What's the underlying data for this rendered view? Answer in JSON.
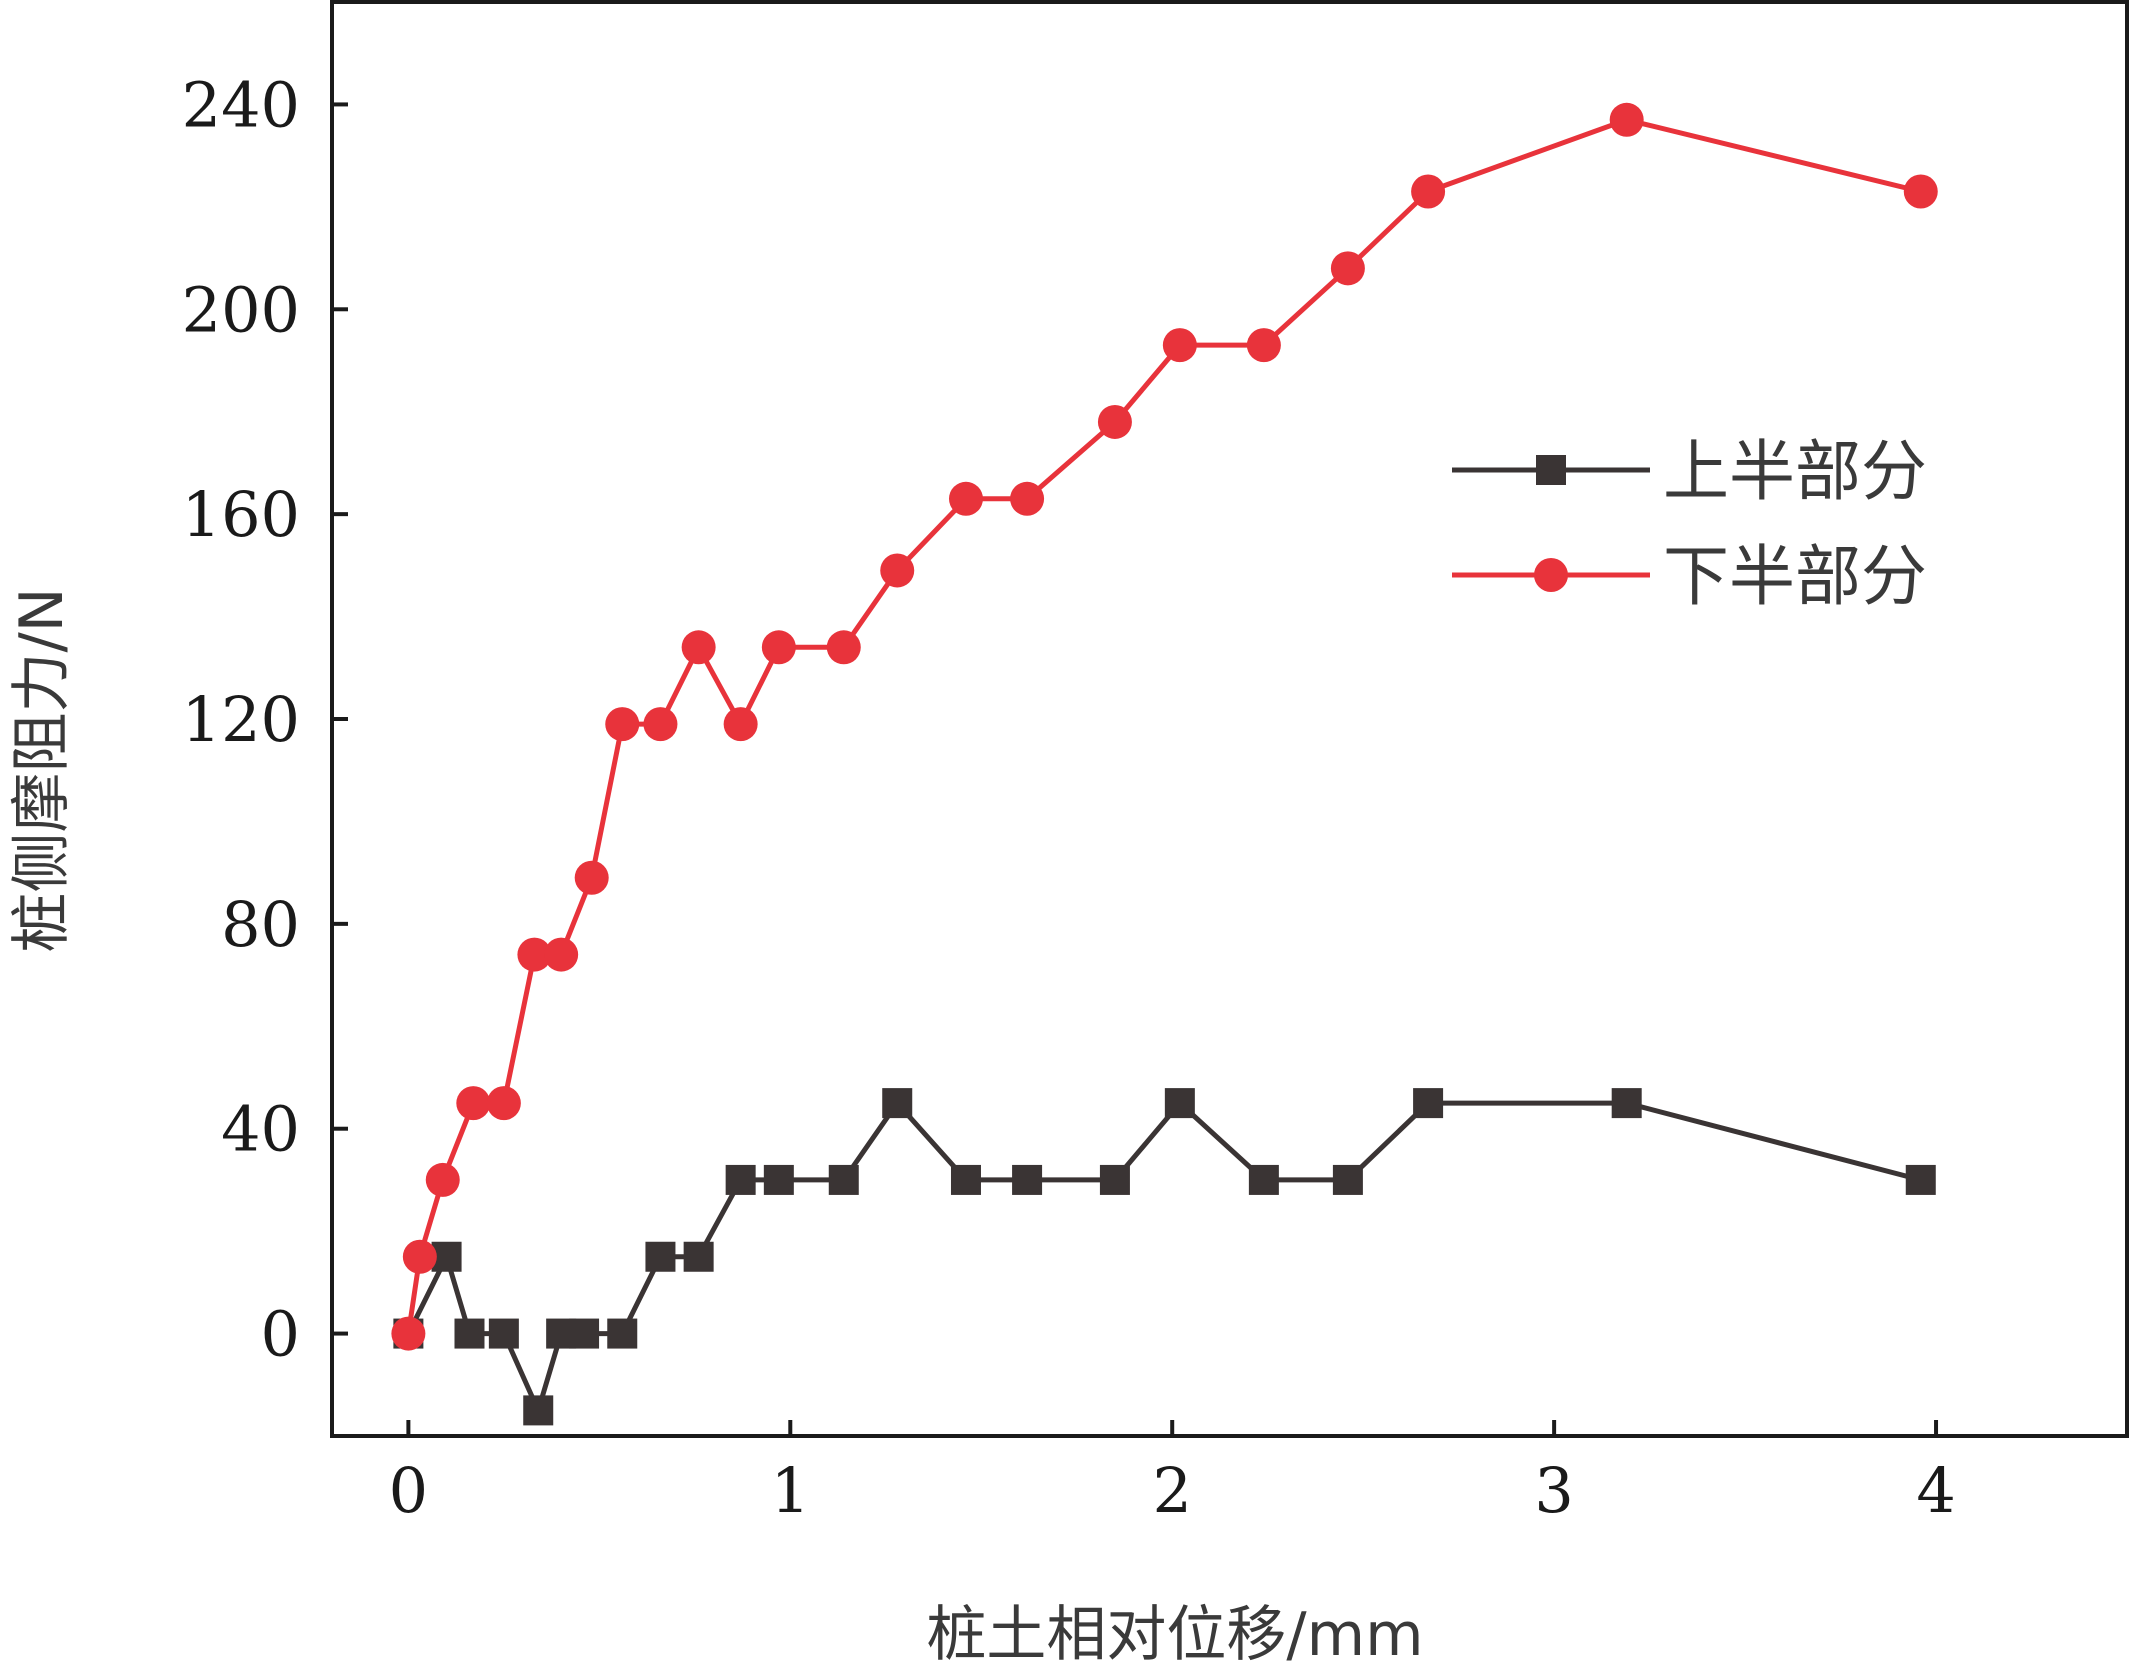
{
  "chart_data": {
    "type": "line",
    "title": "",
    "xlabel": "桩土相对位移/mm",
    "ylabel": "桩侧摩阻力/N",
    "xlim": [
      -0.2,
      4.5
    ],
    "ylim": [
      -20,
      260
    ],
    "xticks": [
      0,
      1,
      2,
      3,
      4
    ],
    "yticks": [
      0,
      40,
      80,
      120,
      160,
      200,
      240
    ],
    "grid": false,
    "legend_position": "center-right",
    "series": [
      {
        "name": "上半部分",
        "color": "#3a3434",
        "marker": "square",
        "x": [
          0,
          0.1,
          0.16,
          0.25,
          0.34,
          0.4,
          0.46,
          0.56,
          0.66,
          0.76,
          0.87,
          0.97,
          1.14,
          1.28,
          1.46,
          1.62,
          1.85,
          2.02,
          2.24,
          2.46,
          2.67,
          3.19,
          3.96
        ],
        "y": [
          0,
          15,
          0,
          0,
          -15,
          0,
          0,
          0,
          15,
          15,
          30,
          30,
          30,
          45,
          30,
          30,
          30,
          45,
          30,
          30,
          45,
          45,
          30
        ]
      },
      {
        "name": "下半部分",
        "color": "#e8333b",
        "marker": "circle",
        "x": [
          0,
          0.03,
          0.09,
          0.17,
          0.25,
          0.33,
          0.4,
          0.48,
          0.56,
          0.66,
          0.76,
          0.87,
          0.97,
          1.14,
          1.28,
          1.46,
          1.62,
          1.85,
          2.02,
          2.24,
          2.46,
          2.67,
          3.19,
          3.96
        ],
        "y": [
          0,
          15,
          30,
          45,
          45,
          74,
          74,
          89,
          119,
          119,
          134,
          119,
          134,
          134,
          149,
          163,
          163,
          178,
          193,
          193,
          208,
          223,
          237,
          223
        ]
      }
    ]
  }
}
